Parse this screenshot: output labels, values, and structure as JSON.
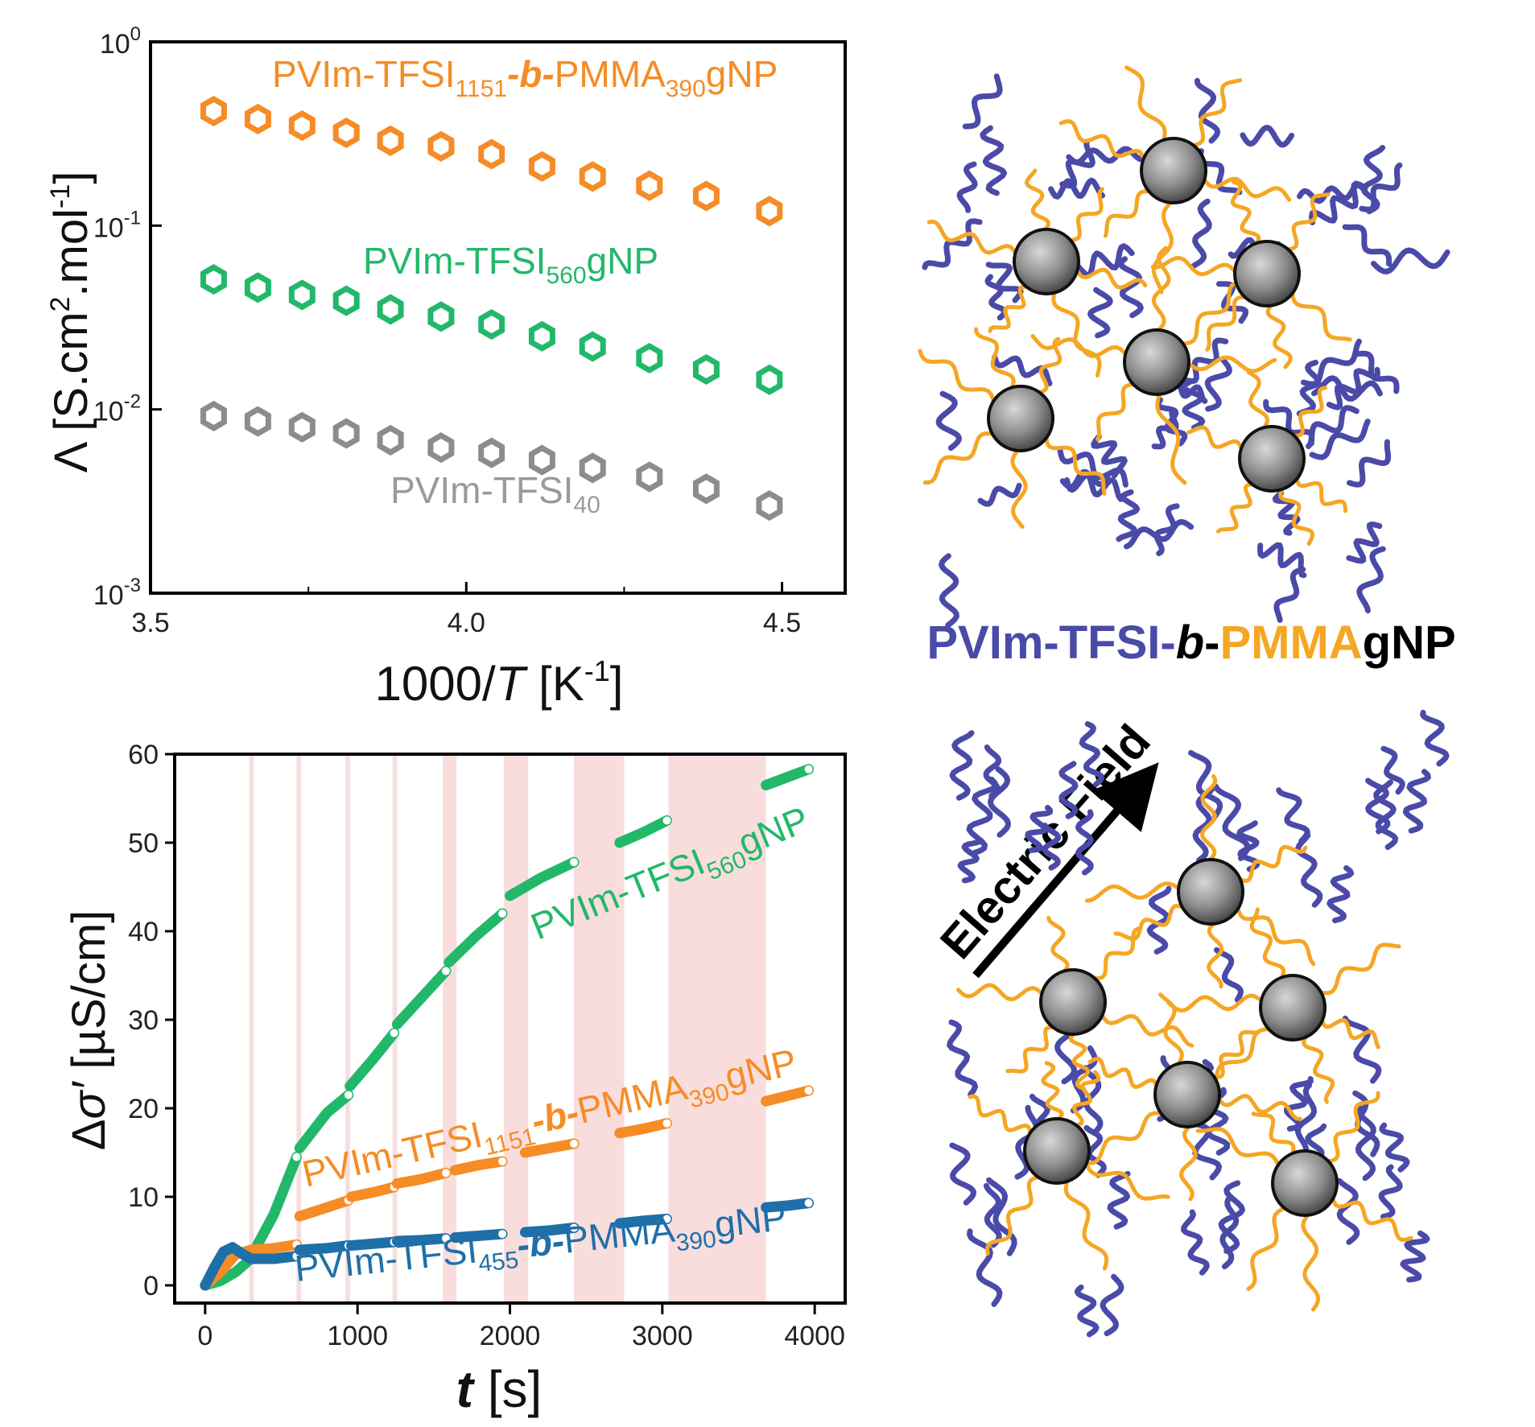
{
  "chart_data": [
    {
      "type": "scatter",
      "xlabel_main": "1000/",
      "xlabel_var": "T",
      "xlabel_unit": " [K",
      "xlabel_sup": "-1",
      "xlabel_close": "]",
      "ylabel_main": "Λ [S.cm",
      "ylabel_sup1": "2",
      "ylabel_mid": ".mol",
      "ylabel_sup2": "-1",
      "ylabel_close": "]",
      "xlim": [
        3.5,
        4.6
      ],
      "ylim_log10": [
        -3,
        0
      ],
      "xticks": [
        "3.5",
        "4.0",
        "4.5"
      ],
      "xtick_values": [
        3.5,
        4.0,
        4.5
      ],
      "yticks": [
        {
          "base": "10",
          "exp": "0",
          "v": 0
        },
        {
          "base": "10",
          "exp": "-1",
          "v": -1
        },
        {
          "base": "10",
          "exp": "-2",
          "v": -2
        },
        {
          "base": "10",
          "exp": "-3",
          "v": -3
        }
      ],
      "series": [
        {
          "name": "PVIm-TFSI1151-b-PMMA390gNP",
          "color": "#f58c26",
          "x": [
            3.6,
            3.67,
            3.74,
            3.81,
            3.88,
            3.96,
            4.04,
            4.12,
            4.2,
            4.29,
            4.38,
            4.48
          ],
          "y": [
            0.42,
            0.38,
            0.35,
            0.32,
            0.29,
            0.27,
            0.245,
            0.21,
            0.185,
            0.165,
            0.145,
            0.12
          ]
        },
        {
          "name": "PVIm-TFSI560gNP",
          "color": "#22b86a",
          "x": [
            3.6,
            3.67,
            3.74,
            3.81,
            3.88,
            3.96,
            4.04,
            4.12,
            4.2,
            4.29,
            4.38,
            4.48
          ],
          "y": [
            0.051,
            0.046,
            0.042,
            0.039,
            0.035,
            0.032,
            0.029,
            0.025,
            0.022,
            0.019,
            0.0165,
            0.0145
          ]
        },
        {
          "name": "PVIm-TFSI40",
          "color": "#8c8c8c",
          "x": [
            3.6,
            3.67,
            3.74,
            3.81,
            3.88,
            3.96,
            4.04,
            4.12,
            4.2,
            4.29,
            4.38,
            4.48
          ],
          "y": [
            0.0092,
            0.0086,
            0.008,
            0.0074,
            0.0068,
            0.0062,
            0.0058,
            0.0053,
            0.0048,
            0.0043,
            0.0037,
            0.003
          ]
        }
      ],
      "labels": [
        {
          "base": "PVIm-TFSI",
          "sub1": "1151",
          "mid": "-b-PMMA",
          "sub2": "390",
          "tail": "gNP",
          "color": "#f58c26"
        },
        {
          "base": "PVIm-TFSI",
          "sub1": "560",
          "tail": "gNP",
          "color": "#22b86a"
        },
        {
          "base": "PVIm-TFSI",
          "sub1": "40",
          "color": "#9a9a9a"
        }
      ]
    },
    {
      "type": "line",
      "xlabel_var": "t",
      "xlabel_unit": " [s]",
      "ylabel_delta": "Δ",
      "ylabel_var": "σ′",
      "ylabel_unit": " [µS/cm]",
      "xlim": [
        -200,
        4200
      ],
      "ylim": [
        -2,
        60
      ],
      "xticks": [
        "0",
        "1000",
        "2000",
        "3000",
        "4000"
      ],
      "xtick_values": [
        0,
        1000,
        2000,
        3000,
        4000
      ],
      "yticks": [
        "0",
        "10",
        "20",
        "30",
        "40",
        "50",
        "60"
      ],
      "ytick_values": [
        0,
        10,
        20,
        30,
        40,
        50,
        60
      ],
      "shaded_intervals": [
        [
          290,
          320
        ],
        [
          600,
          630
        ],
        [
          920,
          950
        ],
        [
          1230,
          1260
        ],
        [
          1560,
          1650
        ],
        [
          1960,
          2120
        ],
        [
          2420,
          2750
        ],
        [
          3040,
          3680
        ]
      ],
      "series": [
        {
          "name": "PVIm-TFSI560gNP",
          "color": "#22b86a",
          "segments": [
            [
              [
                0,
                0
              ],
              [
                100,
                0.5
              ],
              [
                200,
                1.5
              ],
              [
                300,
                3
              ]
            ],
            [
              [
                300,
                3.2
              ],
              [
                450,
                8
              ],
              [
                600,
                14.5
              ]
            ],
            [
              [
                620,
                15.5
              ],
              [
                800,
                19.5
              ],
              [
                940,
                21.5
              ]
            ],
            [
              [
                950,
                22.5
              ],
              [
                1100,
                25.5
              ],
              [
                1240,
                28.5
              ]
            ],
            [
              [
                1260,
                29.5
              ],
              [
                1420,
                32.5
              ],
              [
                1580,
                35.5
              ]
            ],
            [
              [
                1600,
                36.5
              ],
              [
                1780,
                39.5
              ],
              [
                1950,
                42
              ]
            ],
            [
              [
                2000,
                44
              ],
              [
                2200,
                46
              ],
              [
                2420,
                47.8
              ]
            ],
            [
              [
                2720,
                50
              ],
              [
                2880,
                51.2
              ],
              [
                3030,
                52.5
              ]
            ],
            [
              [
                3680,
                56.5
              ],
              [
                3820,
                57.4
              ],
              [
                3960,
                58.3
              ]
            ]
          ]
        },
        {
          "name": "PVIm-TFSI1151-b-PMMA390gNP",
          "color": "#f58c26",
          "segments": [
            [
              [
                0,
                0
              ],
              [
                100,
                1.5
              ],
              [
                200,
                3.5
              ],
              [
                300,
                4
              ]
            ],
            [
              [
                300,
                4
              ],
              [
                450,
                4.2
              ],
              [
                600,
                4.6
              ]
            ],
            [
              [
                620,
                7.8
              ],
              [
                800,
                8.8
              ],
              [
                940,
                9.6
              ]
            ],
            [
              [
                960,
                10
              ],
              [
                1100,
                10.5
              ],
              [
                1240,
                11.1
              ]
            ],
            [
              [
                1260,
                11.5
              ],
              [
                1420,
                12
              ],
              [
                1580,
                12.7
              ]
            ],
            [
              [
                1640,
                13
              ],
              [
                1800,
                13.6
              ],
              [
                1950,
                14
              ]
            ],
            [
              [
                2100,
                15
              ],
              [
                2260,
                15.5
              ],
              [
                2420,
                16
              ]
            ],
            [
              [
                2720,
                17.2
              ],
              [
                2880,
                17.7
              ],
              [
                3030,
                18.3
              ]
            ],
            [
              [
                3680,
                20.8
              ],
              [
                3820,
                21.4
              ],
              [
                3960,
                22
              ]
            ]
          ]
        },
        {
          "name": "PVIm-TFSI455-b-PMMA390gNP",
          "color": "#1f6fa8",
          "segments": [
            [
              [
                0,
                0
              ],
              [
                60,
                2
              ],
              [
                120,
                3.8
              ],
              [
                180,
                4.3
              ],
              [
                240,
                3.6
              ],
              [
                300,
                3
              ]
            ],
            [
              [
                300,
                3
              ],
              [
                450,
                3
              ],
              [
                600,
                3.3
              ]
            ],
            [
              [
                620,
                4
              ],
              [
                800,
                4.2
              ],
              [
                940,
                4.5
              ]
            ],
            [
              [
                960,
                4.5
              ],
              [
                1100,
                4.7
              ],
              [
                1240,
                4.9
              ]
            ],
            [
              [
                1260,
                5
              ],
              [
                1420,
                5.1
              ],
              [
                1580,
                5.3
              ]
            ],
            [
              [
                1640,
                5.4
              ],
              [
                1800,
                5.6
              ],
              [
                1950,
                5.8
              ]
            ],
            [
              [
                2100,
                6
              ],
              [
                2260,
                6.2
              ],
              [
                2420,
                6.5
              ]
            ],
            [
              [
                2720,
                7
              ],
              [
                2880,
                7.3
              ],
              [
                3030,
                7.5
              ]
            ],
            [
              [
                3680,
                8.8
              ],
              [
                3820,
                9
              ],
              [
                3960,
                9.3
              ]
            ]
          ]
        }
      ],
      "labels": [
        {
          "base": "PVIm-TFSI",
          "sub1": "560",
          "tail": "gNP",
          "color": "#22b86a"
        },
        {
          "base": "PVIm-TFSI",
          "sub1": "1151",
          "mid": "-b-PMMA",
          "sub2": "390",
          "tail": "gNP",
          "color": "#f58c26"
        },
        {
          "base": "PVIm-TFSI",
          "sub1": "455",
          "mid": "-b-PMMA",
          "sub2": "390",
          "tail": "gNP",
          "color": "#1f6fa8"
        }
      ]
    }
  ],
  "schematic": {
    "title_part1": "PVIm-TFSI-",
    "title_part2": "b",
    "title_part3": "-",
    "title_part4": "PMMA",
    "title_part5": "gNP",
    "color_block1": "#4a4aa8",
    "color_block2": "#f5a623",
    "field_label": "Electric Field"
  }
}
